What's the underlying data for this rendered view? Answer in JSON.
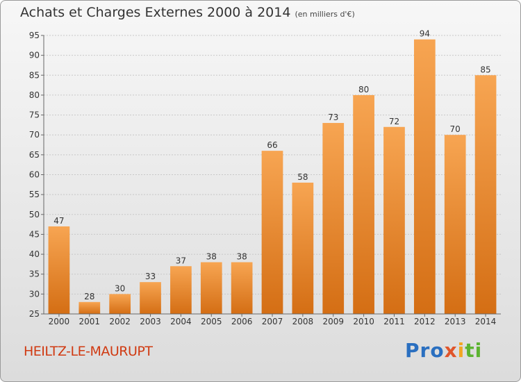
{
  "header": {
    "title": "Achats et Charges Externes 2000 à 2014",
    "unit": "(en milliers d'€)"
  },
  "footer": {
    "commune": "HEILTZ-LE-MAURUPT",
    "brand_parts": [
      "Pro",
      "x",
      "i",
      "ti"
    ]
  },
  "colors": {
    "bar_top": "#f7a552",
    "bar_bottom": "#d46e14",
    "commune_text": "#d03a12"
  },
  "chart_data": {
    "type": "bar",
    "title": "Achats et Charges Externes 2000 à 2014",
    "categories": [
      "2000",
      "2001",
      "2002",
      "2003",
      "2004",
      "2005",
      "2006",
      "2007",
      "2008",
      "2009",
      "2010",
      "2011",
      "2012",
      "2013",
      "2014"
    ],
    "values": [
      47,
      28,
      30,
      33,
      37,
      38,
      38,
      66,
      58,
      73,
      80,
      72,
      94,
      70,
      85
    ],
    "ylim": [
      25,
      95
    ],
    "yticks": [
      25,
      30,
      35,
      40,
      45,
      50,
      55,
      60,
      65,
      70,
      75,
      80,
      85,
      90,
      95
    ],
    "grid": true,
    "xlabel": "",
    "ylabel": ""
  }
}
